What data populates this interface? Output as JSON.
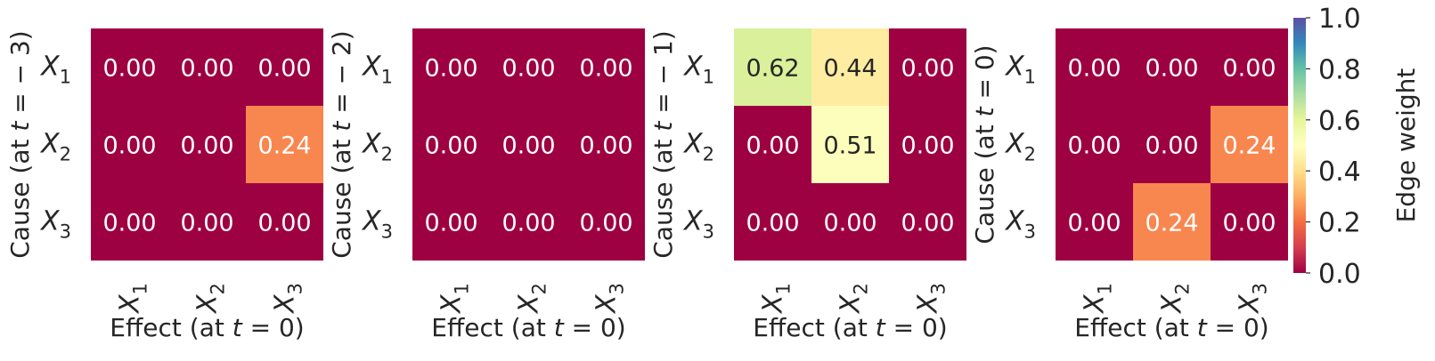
{
  "chart_data": [
    {
      "type": "heatmap",
      "ylabel": "Cause (at t = − 3)",
      "xlabel": "Effect (at t = 0)",
      "rows": [
        "X1",
        "X2",
        "X3"
      ],
      "cols": [
        "X1",
        "X2",
        "X3"
      ],
      "values": [
        [
          0.0,
          0.0,
          0.0
        ],
        [
          0.0,
          0.0,
          0.24
        ],
        [
          0.0,
          0.0,
          0.0
        ]
      ]
    },
    {
      "type": "heatmap",
      "ylabel": "Cause (at t = − 2)",
      "xlabel": "Effect (at t = 0)",
      "rows": [
        "X1",
        "X2",
        "X3"
      ],
      "cols": [
        "X1",
        "X2",
        "X3"
      ],
      "values": [
        [
          0.0,
          0.0,
          0.0
        ],
        [
          0.0,
          0.0,
          0.0
        ],
        [
          0.0,
          0.0,
          0.0
        ]
      ]
    },
    {
      "type": "heatmap",
      "ylabel": "Cause (at t = − 1)",
      "xlabel": "Effect (at t = 0)",
      "rows": [
        "X1",
        "X2",
        "X3"
      ],
      "cols": [
        "X1",
        "X2",
        "X3"
      ],
      "values": [
        [
          0.62,
          0.44,
          0.0
        ],
        [
          0.0,
          0.51,
          0.0
        ],
        [
          0.0,
          0.0,
          0.0
        ]
      ]
    },
    {
      "type": "heatmap",
      "ylabel": "Cause (at t = 0)",
      "xlabel": "Effect (at t = 0)",
      "rows": [
        "X1",
        "X2",
        "X3"
      ],
      "cols": [
        "X1",
        "X2",
        "X3"
      ],
      "values": [
        [
          0.0,
          0.0,
          0.0
        ],
        [
          0.0,
          0.0,
          0.24
        ],
        [
          0.0,
          0.24,
          0.0
        ]
      ]
    }
  ],
  "colorbar": {
    "label": "Edge weight",
    "range": [
      0,
      1
    ],
    "ticks": [
      "0.0",
      "0.2",
      "0.4",
      "0.6",
      "0.8",
      "1.0"
    ],
    "colormap": "Spectral",
    "colormap_stops": [
      "#9e0142",
      "#d53e4f",
      "#f46d43",
      "#fdae61",
      "#fee08b",
      "#ffffbf",
      "#e6f598",
      "#abdda4",
      "#66c2a5",
      "#3288bd",
      "#5e4fa2"
    ]
  }
}
